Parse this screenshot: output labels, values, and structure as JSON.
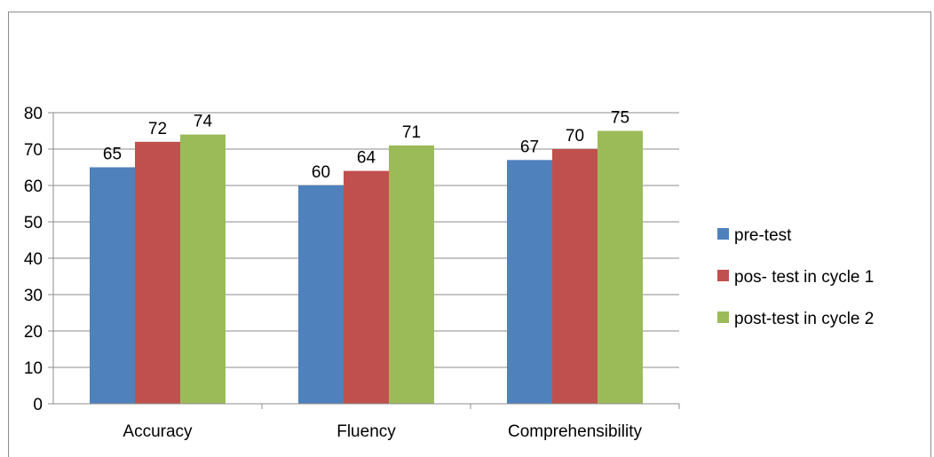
{
  "chart_data": {
    "type": "bar",
    "categories": [
      "Accuracy",
      "Fluency",
      "Comprehensibility"
    ],
    "series": [
      {
        "name": "pre-test",
        "values": [
          65,
          60,
          67
        ],
        "color": "#4f81bd"
      },
      {
        "name": "pos- test in cycle 1",
        "values": [
          72,
          64,
          70
        ],
        "color": "#c0504d"
      },
      {
        "name": "post-test in cycle 2",
        "values": [
          74,
          71,
          75
        ],
        "color": "#9bbb59"
      }
    ],
    "ylim": [
      0,
      80
    ],
    "yticks": [
      0,
      10,
      20,
      30,
      40,
      50,
      60,
      70,
      80
    ],
    "grid": true,
    "legend_position": "right",
    "title": "",
    "xlabel": "",
    "ylabel": ""
  }
}
